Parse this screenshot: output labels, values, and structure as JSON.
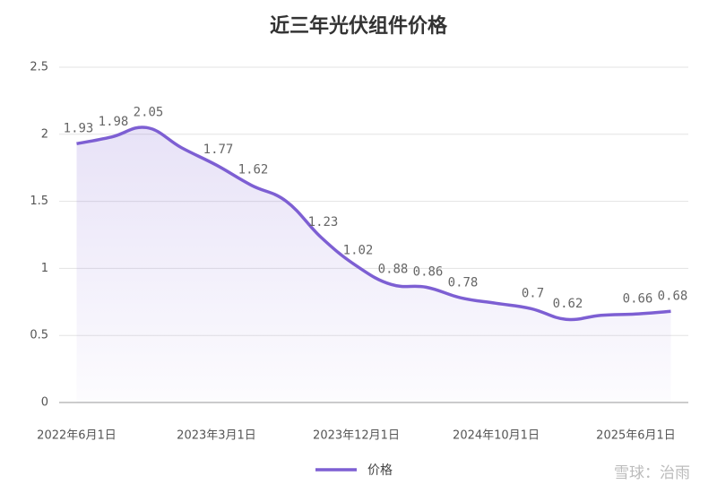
{
  "chart_data": {
    "type": "line",
    "title": "近三年光伏组件价格",
    "categories": [
      "2022年6月1日",
      null,
      null,
      null,
      "2023年3月1日",
      null,
      null,
      null,
      "2023年12月1日",
      null,
      null,
      null,
      "2024年10月1日",
      null,
      null,
      null,
      "2025年6月1日",
      null
    ],
    "series": [
      {
        "name": "价格",
        "color": "#7d5fd3",
        "values": [
          1.93,
          1.98,
          2.05,
          1.9,
          1.77,
          1.62,
          1.5,
          1.23,
          1.02,
          0.88,
          0.86,
          0.78,
          0.74,
          0.7,
          0.62,
          0.65,
          0.66,
          0.68
        ],
        "value_labels": [
          "1.93",
          "1.98",
          "2.05",
          null,
          "1.77",
          "1.62",
          null,
          "1.23",
          "1.02",
          "0.88",
          "0.86",
          "0.78",
          null,
          "0.7",
          "0.62",
          null,
          "0.66",
          "0.68"
        ]
      }
    ],
    "ylim": [
      0,
      2.5
    ],
    "yticks": [
      0,
      0.5,
      1,
      1.5,
      2,
      2.5
    ],
    "grid": true,
    "watermark": "雪球：治雨"
  }
}
